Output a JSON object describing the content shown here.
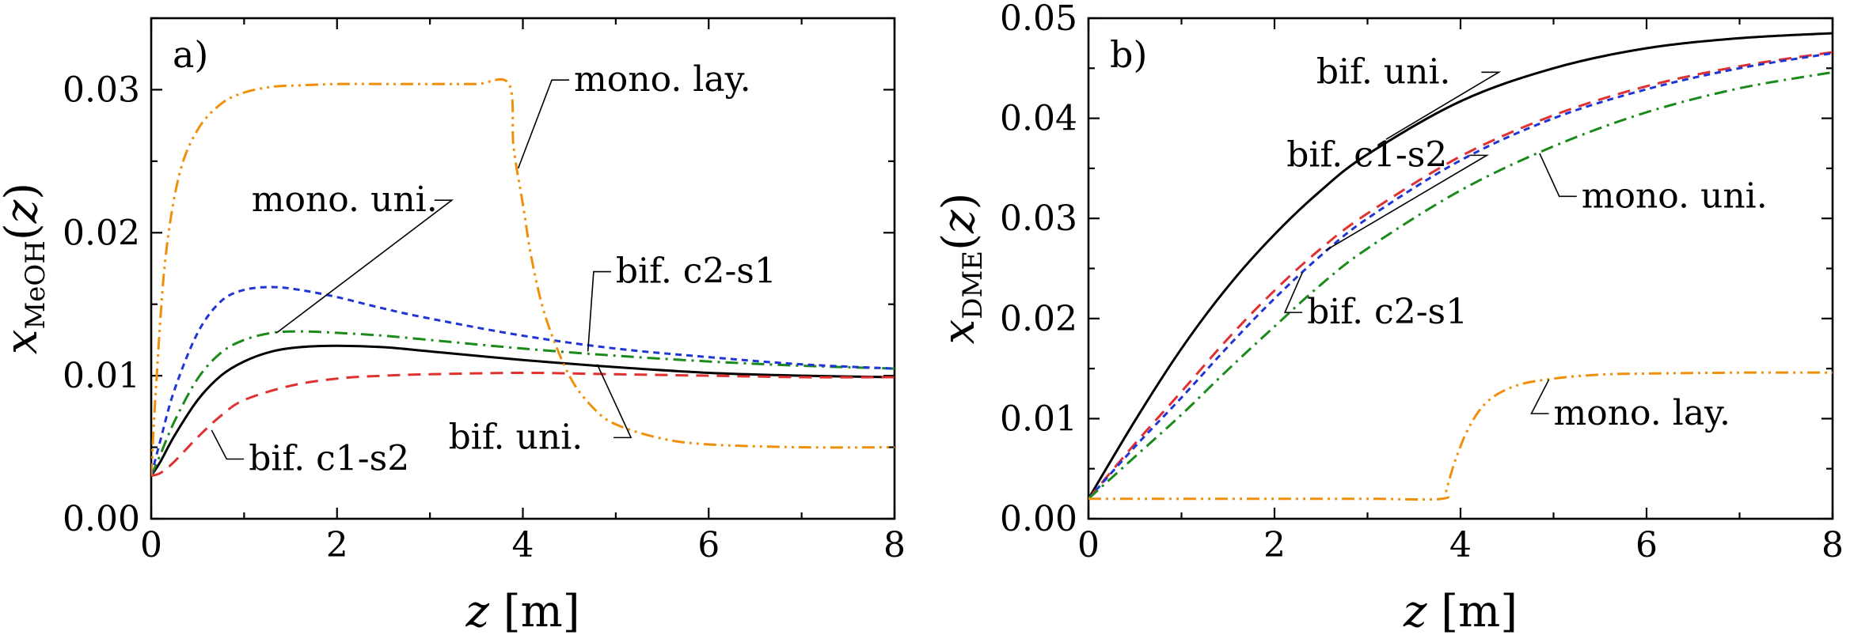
{
  "chart_data": [
    {
      "type": "line",
      "panel_label": "a)",
      "xlabel": {
        "var": "z",
        "unit": "[m]"
      },
      "ylabel": {
        "var": "x",
        "sub": "MeOH",
        "arg": "(z)"
      },
      "xlim": [
        0,
        8
      ],
      "ylim": [
        0,
        0.035
      ],
      "xticks": [
        0,
        2,
        4,
        6,
        8
      ],
      "xtick_labels": [
        "0",
        "2",
        "4",
        "6",
        "8"
      ],
      "yticks": [
        0,
        0.01,
        0.02,
        0.03
      ],
      "ytick_labels": [
        "0.00",
        "0.01",
        "0.02",
        "0.03"
      ],
      "series": [
        {
          "name": "bif. uni.",
          "color": "#000000",
          "style": "solid",
          "x": [
            0,
            0.1,
            0.25,
            0.5,
            0.75,
            1.0,
            1.3,
            1.6,
            2.0,
            2.5,
            3.0,
            4.0,
            5.0,
            6.0,
            7.0,
            8.0
          ],
          "y": [
            0.003,
            0.004,
            0.0058,
            0.0083,
            0.01,
            0.011,
            0.0117,
            0.012,
            0.0121,
            0.012,
            0.0117,
            0.0111,
            0.0106,
            0.0102,
            0.01,
            0.0099
          ]
        },
        {
          "name": "mono. uni.",
          "color": "#1a8a1a",
          "style": "dashdot",
          "x": [
            0,
            0.1,
            0.25,
            0.5,
            0.75,
            1.0,
            1.3,
            1.6,
            2.0,
            2.5,
            3.0,
            4.0,
            5.0,
            6.0,
            7.0,
            8.0
          ],
          "y": [
            0.003,
            0.0045,
            0.0068,
            0.0098,
            0.0116,
            0.0125,
            0.013,
            0.0131,
            0.013,
            0.0128,
            0.0125,
            0.0119,
            0.0114,
            0.011,
            0.0107,
            0.0105
          ]
        },
        {
          "name": "bif. c2-s1",
          "color": "#1f35d6",
          "style": "shortdash",
          "x": [
            0,
            0.1,
            0.25,
            0.5,
            0.75,
            1.0,
            1.3,
            1.6,
            2.0,
            2.5,
            3.0,
            4.0,
            5.0,
            6.0,
            7.0,
            8.0
          ],
          "y": [
            0.003,
            0.0055,
            0.009,
            0.013,
            0.0152,
            0.016,
            0.0162,
            0.016,
            0.0155,
            0.0147,
            0.014,
            0.0128,
            0.0119,
            0.0113,
            0.0108,
            0.0105
          ]
        },
        {
          "name": "bif. c1-s2",
          "color": "#e03030",
          "style": "dash",
          "x": [
            0,
            0.1,
            0.25,
            0.5,
            0.75,
            1.0,
            1.5,
            2.0,
            2.5,
            3.0,
            4.0,
            5.0,
            6.0,
            7.0,
            8.0
          ],
          "y": [
            0.003,
            0.0032,
            0.004,
            0.0057,
            0.0072,
            0.0083,
            0.0093,
            0.0098,
            0.01,
            0.0101,
            0.0102,
            0.0101,
            0.01,
            0.0099,
            0.0099
          ]
        },
        {
          "name": "mono. lay.",
          "color": "#f0900a",
          "style": "dashdotdot",
          "x": [
            0,
            0.05,
            0.15,
            0.3,
            0.5,
            0.75,
            1.0,
            1.3,
            1.6,
            2.0,
            2.5,
            3.0,
            3.5,
            3.85,
            3.9,
            4.0,
            4.1,
            4.25,
            4.5,
            4.75,
            5.0,
            5.5,
            6.0,
            7.0,
            8.0
          ],
          "y": [
            0.003,
            0.009,
            0.018,
            0.024,
            0.0272,
            0.029,
            0.0298,
            0.0302,
            0.0303,
            0.0304,
            0.0304,
            0.0304,
            0.0304,
            0.0304,
            0.026,
            0.022,
            0.018,
            0.014,
            0.01,
            0.0078,
            0.0066,
            0.0056,
            0.0052,
            0.005,
            0.005
          ]
        }
      ],
      "annotations": [
        {
          "text": "mono. lay.",
          "x": 4.55,
          "y": 0.0299,
          "target": [
            3.95,
            0.0245
          ]
        },
        {
          "text": "mono. uni.",
          "x": 1.08,
          "y": 0.0215,
          "target": [
            1.35,
            0.013
          ]
        },
        {
          "text": "bif. c2-s1",
          "x": 5.0,
          "y": 0.0165,
          "target": [
            4.7,
            0.0117
          ]
        },
        {
          "text": "bif. uni.",
          "x": 3.2,
          "y": 0.0049,
          "target": [
            4.8,
            0.0108
          ]
        },
        {
          "text": "bif. c1-s2",
          "x": 1.05,
          "y": 0.0034,
          "target": [
            0.65,
            0.0062
          ]
        }
      ]
    },
    {
      "type": "line",
      "panel_label": "b)",
      "xlabel": {
        "var": "z",
        "unit": "[m]"
      },
      "ylabel": {
        "var": "x",
        "sub": "DME",
        "arg": "(z)"
      },
      "xlim": [
        0,
        8
      ],
      "ylim": [
        0,
        0.05
      ],
      "xticks": [
        0,
        2,
        4,
        6,
        8
      ],
      "xtick_labels": [
        "0",
        "2",
        "4",
        "6",
        "8"
      ],
      "yticks": [
        0,
        0.01,
        0.02,
        0.03,
        0.04,
        0.05
      ],
      "ytick_labels": [
        "0.00",
        "0.01",
        "0.02",
        "0.03",
        "0.04",
        "0.05"
      ],
      "series": [
        {
          "name": "bif. uni.",
          "color": "#000000",
          "style": "solid",
          "x": [
            0,
            0.5,
            1,
            1.5,
            2,
            2.5,
            3,
            4,
            5,
            6,
            7,
            8
          ],
          "y": [
            0.002,
            0.0098,
            0.017,
            0.0232,
            0.0284,
            0.0328,
            0.0364,
            0.0417,
            0.045,
            0.047,
            0.048,
            0.0485
          ]
        },
        {
          "name": "bif. c1-s2",
          "color": "#e03030",
          "style": "dash",
          "x": [
            0,
            0.5,
            1,
            1.5,
            2,
            2.5,
            3,
            4,
            5,
            6,
            7,
            8
          ],
          "y": [
            0.002,
            0.0075,
            0.0127,
            0.018,
            0.0228,
            0.027,
            0.0305,
            0.0362,
            0.0403,
            0.0432,
            0.0452,
            0.0466
          ]
        },
        {
          "name": "bif. c2-s1",
          "color": "#1f35d6",
          "style": "shortdash",
          "x": [
            0,
            0.5,
            1,
            1.5,
            2,
            2.5,
            3,
            4,
            5,
            6,
            7,
            8
          ],
          "y": [
            0.002,
            0.0072,
            0.0121,
            0.0172,
            0.022,
            0.0263,
            0.03,
            0.0358,
            0.04,
            0.0429,
            0.045,
            0.0465
          ]
        },
        {
          "name": "mono. uni.",
          "color": "#1a8a1a",
          "style": "dashdot",
          "x": [
            0,
            0.5,
            1,
            1.5,
            2,
            2.5,
            3,
            4,
            5,
            6,
            7,
            8
          ],
          "y": [
            0.002,
            0.0062,
            0.0104,
            0.0149,
            0.0192,
            0.0234,
            0.027,
            0.0328,
            0.0372,
            0.0406,
            0.043,
            0.0446
          ]
        },
        {
          "name": "mono. lay.",
          "color": "#f0900a",
          "style": "dashdotdot",
          "x": [
            0,
            1,
            2,
            3,
            3.8,
            3.85,
            3.95,
            4.1,
            4.3,
            4.6,
            5.0,
            5.5,
            6.0,
            7.0,
            8.0
          ],
          "y": [
            0.002,
            0.002,
            0.002,
            0.002,
            0.002,
            0.003,
            0.006,
            0.0093,
            0.0118,
            0.0133,
            0.014,
            0.0144,
            0.0145,
            0.0146,
            0.0146
          ]
        }
      ],
      "annotations": [
        {
          "text": "bif. uni.",
          "x": 2.45,
          "y": 0.0435,
          "target": [
            3.2,
            0.0379
          ]
        },
        {
          "text": "bif. c1-s2",
          "x": 2.13,
          "y": 0.0352,
          "target": [
            2.55,
            0.0268
          ]
        },
        {
          "text": "mono. uni.",
          "x": 5.3,
          "y": 0.0311,
          "target": [
            4.85,
            0.0365
          ]
        },
        {
          "text": "bif. c2-s1",
          "x": 2.35,
          "y": 0.0195,
          "target": [
            2.3,
            0.0246
          ]
        },
        {
          "text": "mono. lay.",
          "x": 5.0,
          "y": 0.0094,
          "target": [
            4.95,
            0.0139
          ]
        }
      ]
    }
  ]
}
